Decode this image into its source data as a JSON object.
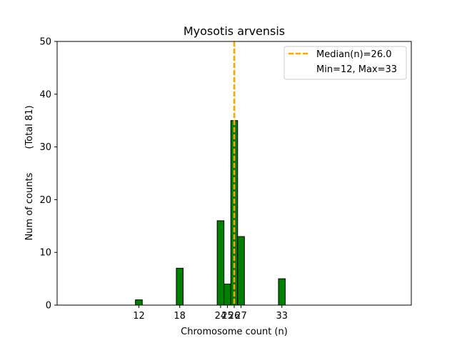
{
  "chart_data": {
    "type": "bar",
    "title": "Myosotis arvensis",
    "xlabel": "Chromosome count (n)",
    "ylabel": "Num of counts        (Total 81)",
    "xlim": [
      0,
      52
    ],
    "ylim": [
      0,
      50
    ],
    "yticks": [
      0,
      10,
      20,
      30,
      40,
      50
    ],
    "xticks": [
      12,
      18,
      24,
      25,
      26,
      27,
      33
    ],
    "bar_color": "#008000",
    "bar_edge_color": "#000000",
    "bars": [
      {
        "x": 12,
        "value": 1
      },
      {
        "x": 18,
        "value": 7
      },
      {
        "x": 24,
        "value": 16
      },
      {
        "x": 25,
        "value": 4
      },
      {
        "x": 26,
        "value": 35
      },
      {
        "x": 27,
        "value": 13
      },
      {
        "x": 33,
        "value": 5
      }
    ],
    "zero_baseline_end": 36.5,
    "median": {
      "value": 26,
      "color": "#FFA500",
      "style": "dashed"
    },
    "legend": {
      "placement": "top-right",
      "entries": [
        "Median(n)=26.0",
        "Min=12, Max=33"
      ]
    }
  }
}
